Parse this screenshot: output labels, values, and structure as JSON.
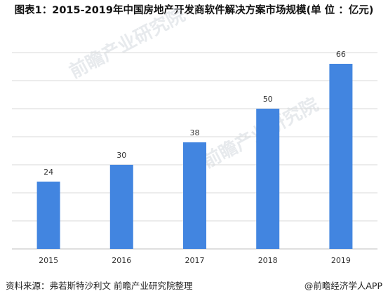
{
  "chart_data": {
    "type": "bar",
    "title": "图表1：2015-2019年中国房地产开发商软件解决方案市场规模(单 位 ：亿元)",
    "categories": [
      "2015",
      "2016",
      "2017",
      "2018",
      "2019"
    ],
    "values": [
      24,
      30,
      38,
      50,
      66
    ],
    "data_labels": [
      "24",
      "30",
      "38",
      "50",
      "66"
    ],
    "ylim": [
      0,
      70
    ],
    "grid": true,
    "bar_color": "#4285e0",
    "grid_color": "#d9d9d9"
  },
  "footer": {
    "source": "资料来源：弗若斯特沙利文 前瞻产业研究院整理",
    "brand": "@前瞻经济学人APP"
  },
  "watermark": {
    "text": "前瞻产业研究院"
  }
}
